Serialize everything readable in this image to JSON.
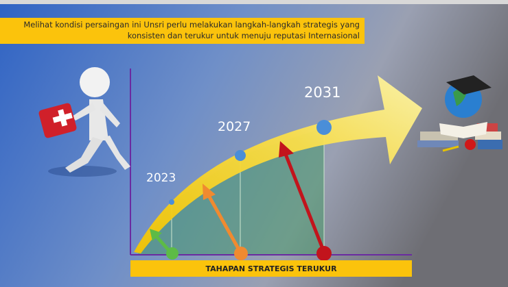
{
  "header": {
    "lines": [
      "Melihat kondisi persaingan ini Unsri perlu melakukan langkah-langkah strategis yang",
      "konsisten dan terukur untuk menuju reputasi Internasional"
    ]
  },
  "milestones": [
    {
      "label": "2023"
    },
    {
      "label": "2027"
    },
    {
      "label": "2031"
    }
  ],
  "footer": {
    "label": "TAHAPAN STRATEGIS TERUKUR"
  }
}
